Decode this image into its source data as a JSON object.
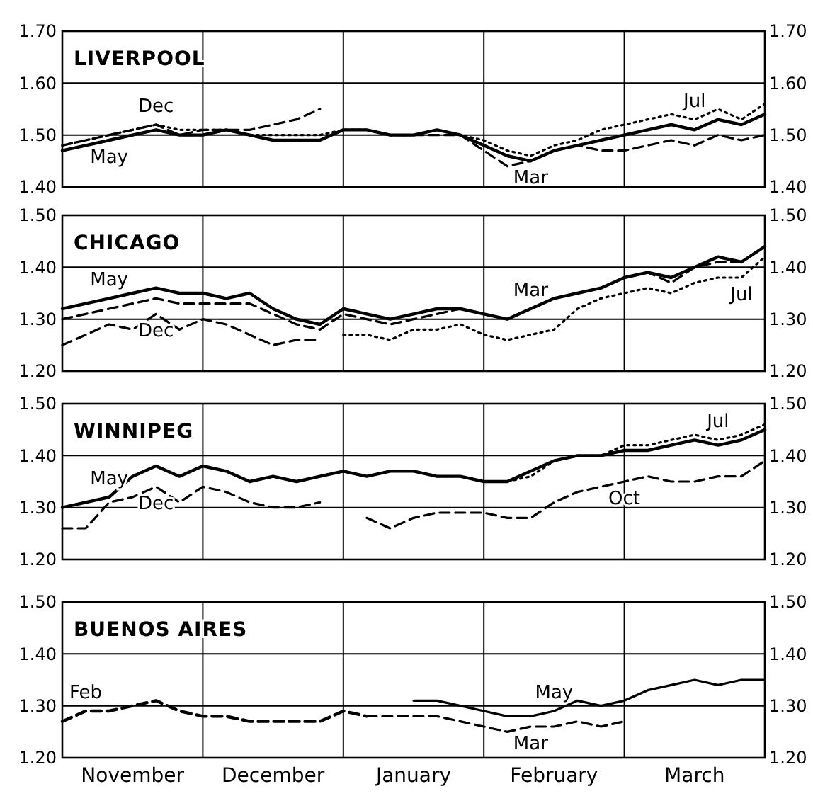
{
  "chart_data": [
    {
      "type": "line",
      "title": "LIVERPOOL",
      "categories": [
        null,
        null,
        null,
        null,
        null,
        null,
        null,
        null,
        null,
        null,
        null,
        null,
        null,
        null,
        null,
        null,
        null,
        null,
        null,
        null,
        null,
        null,
        null,
        null,
        null,
        null,
        null,
        null,
        null,
        null,
        null
      ],
      "ylim": [
        1.4,
        1.7
      ],
      "yticks": [
        {
          "value": 1.4,
          "label": "1.40"
        },
        {
          "value": 1.5,
          "label": "1.50"
        },
        {
          "value": 1.6,
          "label": "1.60"
        },
        {
          "value": 1.7,
          "label": "1.70"
        }
      ],
      "y2lim": [
        1.4,
        1.7
      ],
      "y2ticks": [
        {
          "value": 1.4,
          "label": "1.40"
        },
        {
          "value": 1.5,
          "label": "1.50"
        },
        {
          "value": 1.6,
          "label": "1.60"
        },
        {
          "value": 1.7,
          "label": "1.70"
        }
      ],
      "grid": true,
      "tick_labels": "y",
      "series": [
        {
          "name": "May",
          "color": "#000000",
          "line_style": "solid",
          "values": [
            1.47,
            1.48,
            1.49,
            1.5,
            1.51,
            1.5,
            1.5,
            1.51,
            1.5,
            1.49,
            1.49,
            1.49,
            1.51,
            1.51,
            1.5,
            1.5,
            1.51,
            1.5,
            1.48,
            1.46,
            1.45,
            1.47,
            1.48,
            1.49,
            1.5,
            1.51,
            1.52,
            1.51,
            1.53,
            1.52,
            1.54
          ]
        },
        {
          "name": "Dec",
          "color": "#000000",
          "line_style": "dashed",
          "values": [
            1.48,
            1.49,
            1.5,
            1.51,
            1.52,
            1.5,
            1.51,
            1.51,
            1.51,
            1.52,
            1.53,
            1.55,
            null,
            null,
            null,
            null,
            null,
            null,
            null,
            null,
            null,
            null,
            null,
            null,
            null,
            null,
            null,
            null,
            null,
            null,
            null
          ]
        },
        {
          "name": "Mar",
          "color": "#000000",
          "line_style": "dashed",
          "values": [
            1.47,
            1.48,
            1.49,
            1.5,
            1.51,
            1.5,
            1.5,
            1.51,
            1.5,
            1.49,
            1.49,
            1.49,
            1.51,
            1.51,
            1.5,
            1.5,
            1.5,
            1.5,
            1.47,
            1.44,
            1.45,
            1.47,
            1.48,
            1.47,
            1.47,
            1.48,
            1.49,
            1.48,
            1.5,
            1.49,
            1.5
          ]
        },
        {
          "name": "Jul",
          "color": "#000000",
          "line_style": "dotted",
          "values": [
            1.48,
            1.49,
            1.5,
            1.51,
            1.52,
            1.51,
            1.51,
            1.51,
            1.5,
            1.5,
            1.5,
            1.5,
            1.51,
            1.51,
            1.5,
            1.5,
            1.51,
            1.5,
            1.49,
            1.47,
            1.46,
            1.48,
            1.49,
            1.51,
            1.52,
            1.53,
            1.54,
            1.53,
            1.55,
            1.53,
            1.56
          ]
        }
      ]
    },
    {
      "type": "line",
      "title": "CHICAGO",
      "categories": [
        null,
        null,
        null,
        null,
        null,
        null,
        null,
        null,
        null,
        null,
        null,
        null,
        null,
        null,
        null,
        null,
        null,
        null,
        null,
        null,
        null,
        null,
        null,
        null,
        null,
        null,
        null,
        null,
        null,
        null,
        null
      ],
      "ylim": [
        1.2,
        1.5
      ],
      "yticks": [
        {
          "value": 1.2,
          "label": "1.20"
        },
        {
          "value": 1.3,
          "label": "1.30"
        },
        {
          "value": 1.4,
          "label": "1.40"
        },
        {
          "value": 1.5,
          "label": "1.50"
        }
      ],
      "y2lim": [
        1.2,
        1.5
      ],
      "y2ticks": [
        {
          "value": 1.2,
          "label": "1.20"
        },
        {
          "value": 1.3,
          "label": "1.30"
        },
        {
          "value": 1.4,
          "label": "1.40"
        },
        {
          "value": 1.5,
          "label": "1.50"
        }
      ],
      "grid": true,
      "tick_labels": "y",
      "series": [
        {
          "name": "May",
          "color": "#000000",
          "line_style": "solid",
          "values": [
            1.32,
            1.33,
            1.34,
            1.35,
            1.36,
            1.35,
            1.35,
            1.34,
            1.35,
            1.32,
            1.3,
            1.29,
            1.32,
            1.31,
            1.3,
            1.31,
            1.32,
            1.32,
            1.31,
            1.3,
            1.32,
            1.34,
            1.35,
            1.36,
            1.38,
            1.39,
            1.38,
            1.4,
            1.42,
            1.41,
            1.44
          ]
        },
        {
          "name": "Dec",
          "color": "#000000",
          "line_style": "dashed",
          "values": [
            1.25,
            1.27,
            1.29,
            1.28,
            1.31,
            1.28,
            1.3,
            1.29,
            1.27,
            1.25,
            1.26,
            1.26,
            null,
            null,
            null,
            null,
            null,
            null,
            null,
            null,
            null,
            null,
            null,
            null,
            null,
            null,
            null,
            null,
            null,
            null,
            null
          ]
        },
        {
          "name": "Mar",
          "color": "#000000",
          "line_style": "dashed",
          "values": [
            1.3,
            1.31,
            1.32,
            1.33,
            1.34,
            1.33,
            1.33,
            1.33,
            1.33,
            1.31,
            1.29,
            1.28,
            1.31,
            1.3,
            1.29,
            1.3,
            1.31,
            1.32,
            1.31,
            1.3,
            1.32,
            1.34,
            1.35,
            1.36,
            1.38,
            1.39,
            1.37,
            1.4,
            1.41,
            1.41,
            1.44
          ]
        },
        {
          "name": "Jul",
          "color": "#000000",
          "line_style": "dotted",
          "values": [
            null,
            null,
            null,
            null,
            null,
            null,
            null,
            null,
            null,
            null,
            null,
            null,
            1.27,
            1.27,
            1.26,
            1.28,
            1.28,
            1.29,
            1.27,
            1.26,
            1.27,
            1.28,
            1.32,
            1.34,
            1.35,
            1.36,
            1.35,
            1.37,
            1.38,
            1.38,
            1.42
          ]
        }
      ]
    },
    {
      "type": "line",
      "title": "WINNIPEG",
      "categories": [
        null,
        null,
        null,
        null,
        null,
        null,
        null,
        null,
        null,
        null,
        null,
        null,
        null,
        null,
        null,
        null,
        null,
        null,
        null,
        null,
        null,
        null,
        null,
        null,
        null,
        null,
        null,
        null,
        null,
        null,
        null
      ],
      "ylim": [
        1.2,
        1.5
      ],
      "yticks": [
        {
          "value": 1.2,
          "label": "1.20"
        },
        {
          "value": 1.3,
          "label": "1.30"
        },
        {
          "value": 1.4,
          "label": "1.40"
        },
        {
          "value": 1.5,
          "label": "1.50"
        }
      ],
      "y2lim": [
        1.2,
        1.5
      ],
      "y2ticks": [
        {
          "value": 1.2,
          "label": "1.20"
        },
        {
          "value": 1.3,
          "label": "1.30"
        },
        {
          "value": 1.4,
          "label": "1.40"
        },
        {
          "value": 1.5,
          "label": "1.50"
        }
      ],
      "grid": true,
      "tick_labels": "y",
      "series": [
        {
          "name": "May",
          "color": "#000000",
          "line_style": "solid",
          "values": [
            1.3,
            1.31,
            1.32,
            1.36,
            1.38,
            1.36,
            1.38,
            1.37,
            1.35,
            1.36,
            1.35,
            1.36,
            1.37,
            1.36,
            1.37,
            1.37,
            1.36,
            1.36,
            1.35,
            1.35,
            1.37,
            1.39,
            1.4,
            1.4,
            1.41,
            1.41,
            1.42,
            1.43,
            1.42,
            1.43,
            1.45
          ]
        },
        {
          "name": "Dec",
          "color": "#000000",
          "line_style": "dashed",
          "values": [
            1.26,
            1.26,
            1.31,
            1.32,
            1.34,
            1.31,
            1.34,
            1.33,
            1.31,
            1.3,
            1.3,
            1.31,
            null,
            null,
            null,
            null,
            null,
            null,
            null,
            null,
            null,
            null,
            null,
            null,
            null,
            null,
            null,
            null,
            null,
            null,
            null
          ]
        },
        {
          "name": "Oct",
          "color": "#000000",
          "line_style": "dashed",
          "values": [
            null,
            null,
            null,
            null,
            null,
            null,
            null,
            null,
            null,
            null,
            null,
            null,
            null,
            1.28,
            1.26,
            1.28,
            1.29,
            1.29,
            1.29,
            1.28,
            1.28,
            1.31,
            1.33,
            1.34,
            1.35,
            1.36,
            1.35,
            1.35,
            1.36,
            1.36,
            1.39
          ]
        },
        {
          "name": "Jul",
          "color": "#000000",
          "line_style": "dotted",
          "values": [
            null,
            null,
            null,
            null,
            null,
            null,
            1.38,
            1.37,
            1.35,
            1.36,
            1.35,
            1.36,
            1.37,
            1.36,
            1.37,
            1.37,
            1.36,
            1.36,
            1.35,
            1.35,
            1.36,
            1.39,
            1.4,
            1.4,
            1.42,
            1.42,
            1.43,
            1.44,
            1.43,
            1.44,
            1.46
          ]
        }
      ]
    },
    {
      "type": "line",
      "title": "BUENOS AIRES",
      "categories": [
        null,
        null,
        null,
        "November",
        null,
        null,
        null,
        null,
        null,
        "December",
        null,
        null,
        null,
        null,
        null,
        "January",
        null,
        null,
        null,
        null,
        null,
        "February",
        null,
        null,
        null,
        null,
        null,
        "March",
        null,
        null,
        null
      ],
      "ylim": [
        1.2,
        1.5
      ],
      "yticks": [
        {
          "value": 1.2,
          "label": "1.20"
        },
        {
          "value": 1.3,
          "label": "1.30"
        },
        {
          "value": 1.4,
          "label": "1.40"
        },
        {
          "value": 1.5,
          "label": "1.50"
        }
      ],
      "y2lim": [
        1.2,
        1.5
      ],
      "y2ticks": [
        {
          "value": 1.2,
          "label": "1.20"
        },
        {
          "value": 1.3,
          "label": "1.30"
        },
        {
          "value": 1.4,
          "label": "1.40"
        },
        {
          "value": 1.5,
          "label": "1.50"
        }
      ],
      "grid": true,
      "series": [
        {
          "name": "Feb",
          "color": "#000000",
          "line_style": "dashed",
          "values": [
            1.27,
            1.29,
            1.29,
            1.3,
            1.31,
            1.29,
            1.28,
            1.28,
            1.27,
            1.27,
            1.27,
            1.27,
            1.29,
            1.28,
            null,
            null,
            null,
            null,
            null,
            null,
            null,
            null,
            null,
            null,
            null,
            null,
            null,
            null,
            null,
            null,
            null
          ]
        },
        {
          "name": "May",
          "color": "#000000",
          "line_style": "solid",
          "values": [
            null,
            null,
            null,
            null,
            null,
            null,
            null,
            null,
            null,
            null,
            null,
            null,
            null,
            null,
            null,
            1.31,
            1.31,
            1.3,
            1.29,
            1.28,
            1.28,
            1.29,
            1.31,
            1.3,
            1.31,
            1.33,
            1.34,
            1.35,
            1.34,
            1.35,
            1.35
          ]
        },
        {
          "name": "Mar",
          "color": "#000000",
          "line_style": "dashed",
          "values": [
            null,
            null,
            null,
            null,
            null,
            null,
            null,
            null,
            null,
            null,
            null,
            null,
            null,
            1.28,
            1.28,
            1.28,
            1.28,
            1.27,
            1.26,
            1.25,
            1.26,
            1.26,
            1.27,
            1.26,
            1.27,
            null,
            null,
            null,
            null,
            null,
            null
          ]
        }
      ]
    }
  ]
}
